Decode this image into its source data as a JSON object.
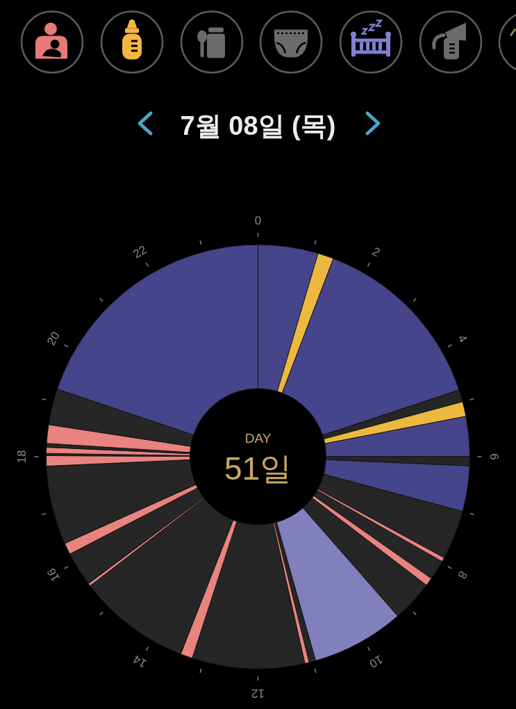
{
  "chart_data": {
    "type": "donut",
    "title": "7월 08일 (목)",
    "annotations": [
      "DAY",
      "51일",
      "0",
      "2",
      "4",
      "6",
      "8",
      "10",
      "12",
      "14",
      "16",
      "18",
      "20",
      "22"
    ],
    "categories": [
      null,
      null,
      null,
      null,
      null,
      null,
      null,
      null,
      null,
      null,
      null,
      null,
      null,
      null,
      null,
      null,
      null,
      null,
      null,
      null,
      null,
      null,
      null,
      null,
      null,
      null,
      null,
      null,
      null,
      null
    ],
    "values": [
      4.58,
      1.21,
      14.12,
      0.92,
      1.12,
      3.04,
      0.71,
      3.46,
      3.75,
      0.33,
      1.5,
      0.63,
      3.17,
      7.08,
      0.5,
      0.33,
      8.58,
      0.92,
      8.62,
      0.21,
      2.63,
      0.88,
      6.0,
      0.79,
      0.17,
      0.46,
      0.29,
      1.42,
      2.75,
      19.83
    ],
    "colors": [
      "#46448a",
      "#ebb93f",
      "#46448a",
      "#262626",
      "#ebb93f",
      "#46448a",
      "#262626",
      "#46448a",
      "#262626",
      "#e8837f",
      "#262626",
      "#e8837f",
      "#262626",
      "#8180bd",
      "#262626",
      "#e8837f",
      "#262626",
      "#e8837f",
      "#262626",
      "#e8837f",
      "#262626",
      "#e8837f",
      "#262626",
      "#e8837f",
      "#262626",
      "#e8837f",
      "#262626",
      "#e8837f",
      "#262626",
      "#46448a"
    ]
  }
}
